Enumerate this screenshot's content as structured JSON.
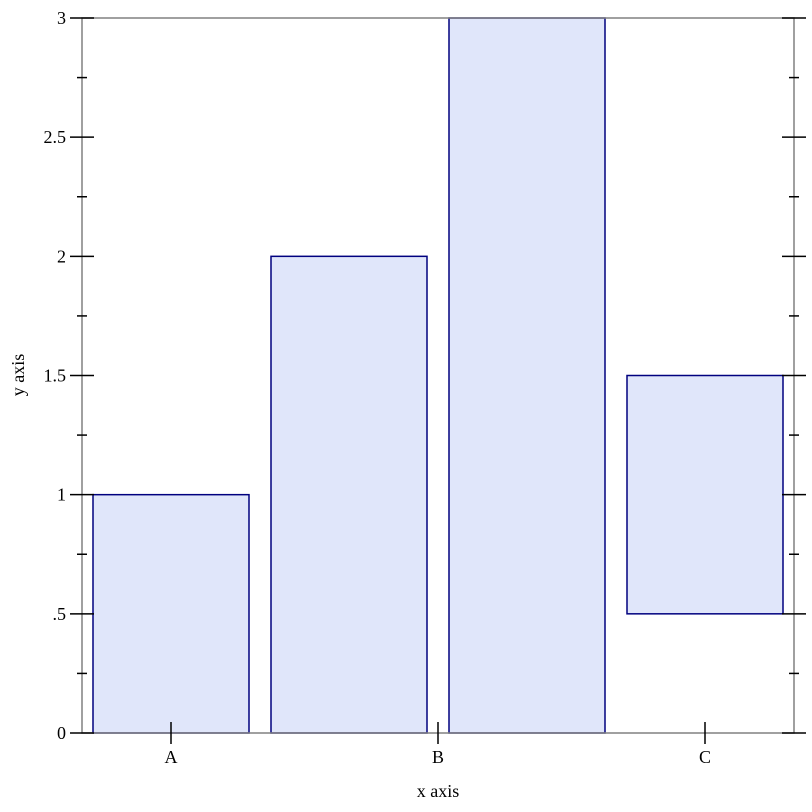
{
  "chart_data": {
    "type": "bar",
    "xlabel": "x axis",
    "ylabel": "y axis",
    "ylim": [
      0,
      3
    ],
    "y_ticks": [
      0,
      0.5,
      1,
      1.5,
      2,
      2.5,
      3
    ],
    "y_tick_labels": [
      "0",
      ".5",
      "1",
      "1.5",
      "2",
      "2.5",
      "3"
    ],
    "x_tick_labels": [
      "A",
      "B",
      "C"
    ],
    "bars": [
      {
        "y_min": 0,
        "y_max": 1
      },
      {
        "y_min": 0,
        "y_max": 2
      },
      {
        "y_min": 0,
        "y_max": 3
      },
      {
        "y_min": 0.5,
        "y_max": 1.5
      }
    ],
    "grid": false,
    "colors": {
      "bar_fill": "#e0e6fa",
      "bar_stroke": "#00007f",
      "frame": "#808080"
    }
  }
}
